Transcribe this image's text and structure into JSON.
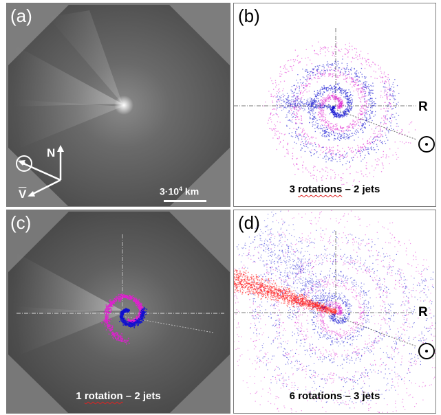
{
  "panels": {
    "a": {
      "label": "(a)",
      "north": "N",
      "velocity": "V",
      "scale_value": "3·10",
      "scale_exp": "4",
      "scale_unit": " km"
    },
    "b": {
      "label": "(b)",
      "caption_pre": "3 ",
      "caption_word": "rotations",
      "caption_post": " – 2 jets",
      "r_label": "R"
    },
    "c": {
      "label": "(c)",
      "caption_pre": "1 ",
      "caption_word": "rotation",
      "caption_post": " – 2 jets"
    },
    "d": {
      "label": "(d)",
      "caption_pre": "6 rotations – 3 jets",
      "caption_word": "",
      "caption_post": "",
      "r_label": "R"
    }
  },
  "colors": {
    "jet_blue": "#1010d0",
    "jet_magenta": "#e020d0",
    "jet_red": "#ff2020",
    "coma_gray": "#5e5e5e"
  }
}
